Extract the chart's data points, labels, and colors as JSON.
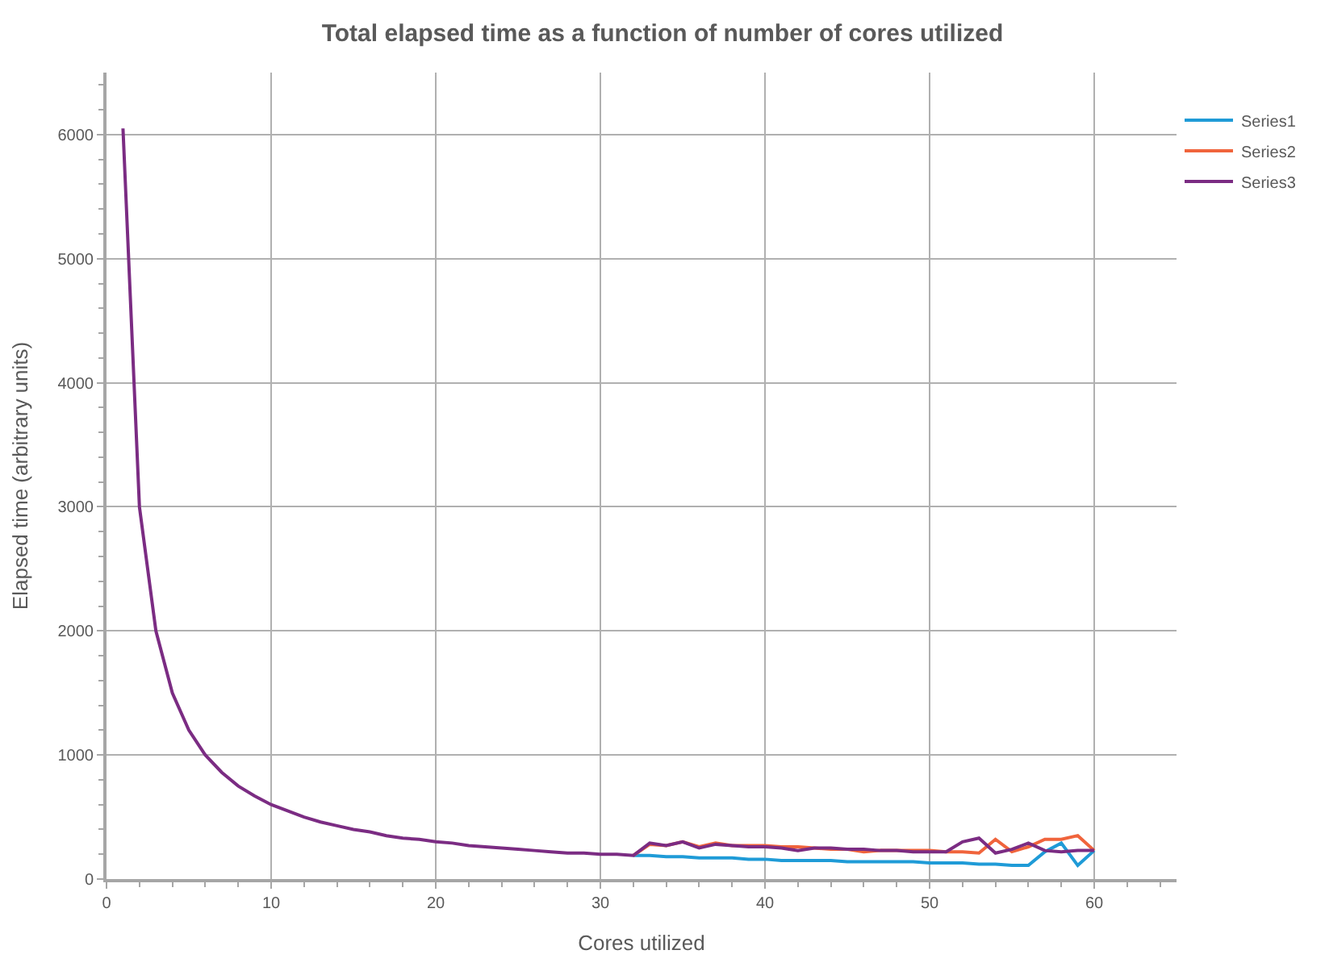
{
  "chart_data": {
    "type": "line",
    "title": "Total elapsed time as a function of number of cores utilized",
    "xlabel": "Cores utilized",
    "ylabel": "Elapsed time (arbitrary units)",
    "x": [
      1,
      2,
      3,
      4,
      5,
      6,
      7,
      8,
      9,
      10,
      11,
      12,
      13,
      14,
      15,
      16,
      17,
      18,
      19,
      20,
      21,
      22,
      23,
      24,
      25,
      26,
      27,
      28,
      29,
      30,
      31,
      32,
      33,
      34,
      35,
      36,
      37,
      38,
      39,
      40,
      41,
      42,
      43,
      44,
      45,
      46,
      47,
      48,
      49,
      50,
      51,
      52,
      53,
      54,
      55,
      56,
      57,
      58,
      59,
      60
    ],
    "series": [
      {
        "name": "Series1",
        "color": "#1f9bd7",
        "values": [
          null,
          null,
          null,
          null,
          null,
          null,
          null,
          null,
          null,
          null,
          null,
          null,
          null,
          null,
          null,
          null,
          null,
          null,
          null,
          null,
          null,
          null,
          null,
          null,
          null,
          null,
          null,
          null,
          null,
          null,
          null,
          190,
          190,
          180,
          180,
          170,
          170,
          170,
          160,
          160,
          150,
          150,
          150,
          150,
          140,
          140,
          140,
          140,
          140,
          130,
          130,
          130,
          120,
          120,
          110,
          110,
          220,
          290,
          110,
          230
        ]
      },
      {
        "name": "Series2",
        "color": "#f0643c",
        "values": [
          null,
          null,
          null,
          null,
          null,
          null,
          null,
          null,
          null,
          null,
          null,
          null,
          null,
          null,
          null,
          null,
          null,
          null,
          null,
          null,
          null,
          null,
          null,
          null,
          null,
          null,
          null,
          null,
          null,
          null,
          null,
          190,
          280,
          270,
          300,
          260,
          290,
          270,
          270,
          270,
          260,
          260,
          250,
          240,
          240,
          220,
          230,
          230,
          230,
          230,
          220,
          220,
          210,
          320,
          220,
          260,
          320,
          320,
          350,
          230
        ]
      },
      {
        "name": "Series3",
        "color": "#7b2c83",
        "values": [
          6050,
          3000,
          2000,
          1500,
          1200,
          1000,
          860,
          750,
          670,
          600,
          550,
          500,
          460,
          430,
          400,
          380,
          350,
          330,
          320,
          300,
          290,
          270,
          260,
          250,
          240,
          230,
          220,
          210,
          210,
          200,
          200,
          190,
          290,
          270,
          300,
          250,
          280,
          270,
          260,
          260,
          250,
          230,
          250,
          250,
          240,
          240,
          230,
          230,
          220,
          220,
          220,
          300,
          330,
          210,
          240,
          290,
          230,
          220,
          230,
          230
        ]
      }
    ],
    "xlim": [
      0,
      65
    ],
    "xticks": [
      0,
      10,
      20,
      30,
      40,
      50,
      60
    ],
    "ylim": [
      0,
      6500
    ],
    "yticks": [
      0,
      1000,
      2000,
      3000,
      4000,
      5000,
      6000
    ],
    "grid": true,
    "legend": "top right",
    "marker": "none",
    "line_style": "solid"
  }
}
